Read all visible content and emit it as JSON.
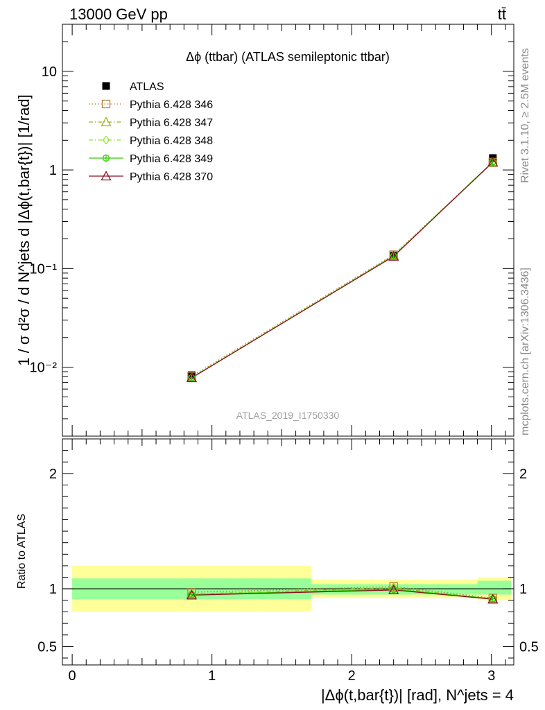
{
  "header": {
    "energy_label": "13000 GeV pp",
    "process_label": "tt̄"
  },
  "side_labels": {
    "rivet": "Rivet 3.1.10, ≥ 2.5M events",
    "mcplots": "mcplots.cern.ch [arXiv:1306.3436]"
  },
  "watermark": "ATLAS_2019_I1750330",
  "colors": {
    "atlas": "#000000",
    "p346": "#b5813a",
    "p347": "#9ab51a",
    "p348": "#92e03a",
    "p349": "#33cc00",
    "p370": "#8a1020",
    "band_outer": "#ffff99",
    "band_inner": "#99ff99"
  },
  "chart_data": [
    {
      "type": "line",
      "title": "Δϕ (ttbar) (ATLAS semileptonic ttbar)",
      "ylabel": "1 / σ d²σ / d N^jets d |Δϕ(t,bar{t})| [1/rad]",
      "xlabel": "",
      "yscale": "log",
      "xlim": [
        -0.07,
        3.16
      ],
      "ylim": [
        0.002,
        30
      ],
      "y_ticks": [
        {
          "value": 0.01,
          "label": "10⁻²"
        },
        {
          "value": 0.1,
          "label": "10⁻¹"
        },
        {
          "value": 1,
          "label": "1"
        },
        {
          "value": 10,
          "label": "10"
        }
      ],
      "legend_position": "top-left",
      "x": [
        0.855,
        2.3,
        3.01
      ],
      "series": [
        {
          "name": "ATLAS",
          "key": "atlas",
          "marker": "square-filled",
          "style": "none",
          "values": [
            0.0083,
            0.135,
            1.32
          ]
        },
        {
          "name": "Pythia 6.428 346",
          "key": "p346",
          "marker": "square-open",
          "style": "dotted",
          "values": [
            0.0081,
            0.138,
            1.2
          ]
        },
        {
          "name": "Pythia 6.428 347",
          "key": "p347",
          "marker": "triangle-open",
          "style": "dashdot",
          "values": [
            0.0079,
            0.136,
            1.19
          ]
        },
        {
          "name": "Pythia 6.428 348",
          "key": "p348",
          "marker": "diamond-open",
          "style": "dashdot",
          "values": [
            0.0079,
            0.135,
            1.2
          ]
        },
        {
          "name": "Pythia 6.428 349",
          "key": "p349",
          "marker": "circle-cross",
          "style": "solid",
          "values": [
            0.0078,
            0.134,
            1.21
          ]
        },
        {
          "name": "Pythia 6.428 370",
          "key": "p370",
          "marker": "triangle-open",
          "style": "solid",
          "values": [
            0.0078,
            0.133,
            1.2
          ]
        }
      ]
    },
    {
      "type": "line",
      "title": "",
      "ylabel": "Ratio to ATLAS",
      "xlabel": "|Δϕ(t,bar{t})| [rad], N^jets = 4",
      "xlim": [
        -0.07,
        3.16
      ],
      "ylim": [
        0.34,
        2.3
      ],
      "x_ticks": [
        0,
        1,
        2,
        3
      ],
      "y_ticks": [
        0.5,
        1,
        2
      ],
      "reference_line": 1,
      "bands": [
        {
          "x_range": [
            0,
            1.71
          ],
          "outer": [
            0.8,
            1.2
          ],
          "inner": [
            0.91,
            1.09
          ]
        },
        {
          "x_range": [
            1.71,
            2.9
          ],
          "outer": [
            0.92,
            1.08
          ],
          "inner": [
            0.95,
            1.04
          ]
        },
        {
          "x_range": [
            2.9,
            3.14
          ],
          "outer": [
            0.9,
            1.1
          ],
          "inner": [
            0.95,
            1.07
          ]
        }
      ],
      "x": [
        0.855,
        2.3,
        3.01
      ],
      "series": [
        {
          "name": "Pythia 6.428 346",
          "key": "p346",
          "values": [
            0.97,
            1.02,
            0.92
          ]
        },
        {
          "name": "Pythia 6.428 347",
          "key": "p347",
          "values": [
            0.955,
            1.01,
            0.91
          ]
        },
        {
          "name": "Pythia 6.428 348",
          "key": "p348",
          "values": [
            0.955,
            1.0,
            0.915
          ]
        },
        {
          "name": "Pythia 6.428 349",
          "key": "p349",
          "values": [
            0.95,
            0.995,
            0.915
          ]
        },
        {
          "name": "Pythia 6.428 370",
          "key": "p370",
          "values": [
            0.945,
            0.99,
            0.91
          ]
        }
      ]
    }
  ]
}
